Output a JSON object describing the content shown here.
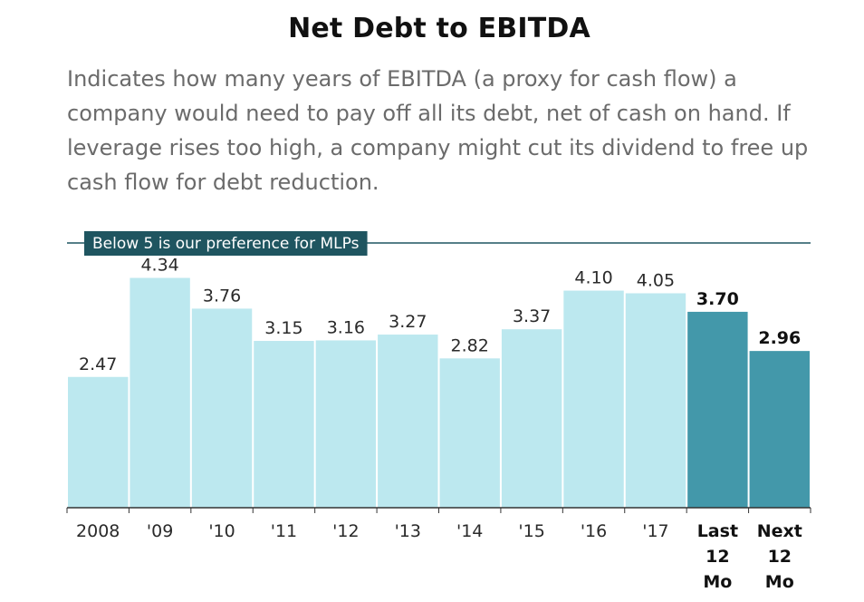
{
  "title": "Net Debt to EBITDA",
  "subtitle": "Indicates how many years of EBITDA (a proxy for cash flow) a company would need to pay off all its debt, net of cash on hand. If leverage rises too high, a company might cut its dividend to free up cash flow for debt reduction.",
  "colors": {
    "light_bar": "#bce8ef",
    "dark_bar": "#4398aa",
    "reference": "#1f5560",
    "axis": "#333333"
  },
  "chart_data": {
    "type": "bar",
    "categories": [
      "2008",
      "'09",
      "'10",
      "'11",
      "'12",
      "'13",
      "'14",
      "'15",
      "'16",
      "'17",
      "Last\n12\nMo",
      "Next\n12\nMo"
    ],
    "values": [
      2.47,
      4.34,
      3.76,
      3.15,
      3.16,
      3.27,
      2.82,
      3.37,
      4.1,
      4.05,
      3.7,
      2.96
    ],
    "value_labels": [
      "2.47",
      "4.34",
      "3.76",
      "3.15",
      "3.16",
      "3.27",
      "2.82",
      "3.37",
      "4.10",
      "4.05",
      "3.70",
      "2.96"
    ],
    "highlighted": [
      false,
      false,
      false,
      false,
      false,
      false,
      false,
      false,
      false,
      false,
      true,
      true
    ],
    "ylim": [
      0,
      5
    ],
    "reference_line": {
      "value": 5,
      "label": "Below 5 is our preference for MLPs"
    },
    "grid": false,
    "xlabel": "",
    "ylabel": ""
  }
}
